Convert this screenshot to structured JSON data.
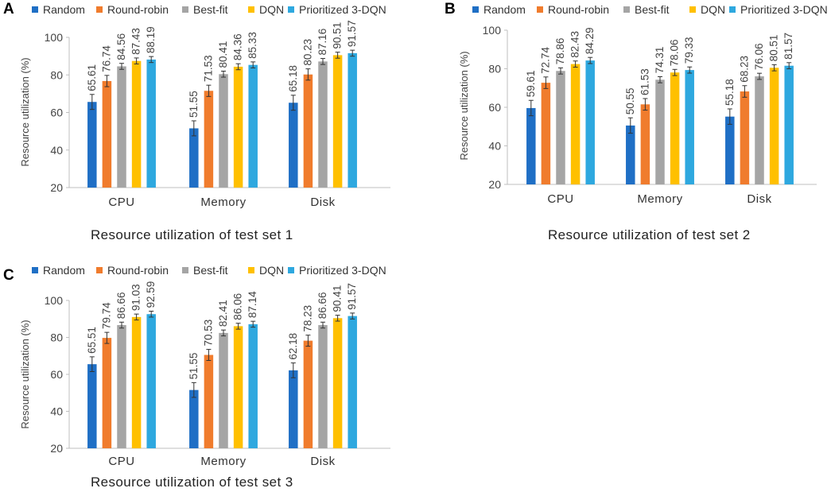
{
  "chart_data": [
    {
      "panel": "A",
      "type": "bar",
      "caption": "Resource utilization of test set 1",
      "ylabel": "Resource utilization (%)",
      "xlabel": "",
      "ylim": [
        20,
        100
      ],
      "yticks": [
        20,
        40,
        60,
        80,
        100
      ],
      "grid": false,
      "legend_position": "top",
      "categories": [
        "CPU",
        "Memory",
        "Disk"
      ],
      "series": [
        {
          "name": "Random",
          "color": "#1f6fc5",
          "values": [
            65.61,
            51.55,
            65.18
          ],
          "labels": [
            "65.61",
            "51.55",
            "65.18"
          ]
        },
        {
          "name": "Round-robin",
          "color": "#f07c2d",
          "values": [
            76.74,
            71.53,
            80.23
          ],
          "labels": [
            "76.74",
            "71.53",
            "80.23"
          ]
        },
        {
          "name": "Best-fit",
          "color": "#a5a5a5",
          "values": [
            84.56,
            80.41,
            87.16
          ],
          "labels": [
            "84.56",
            "80.41",
            "87.16"
          ]
        },
        {
          "name": "DQN",
          "color": "#ffc000",
          "values": [
            87.43,
            84.36,
            90.51
          ],
          "labels": [
            "87.43",
            "84.36",
            "90.51"
          ]
        },
        {
          "name": "Prioritized 3-DQN",
          "color": "#2ea8df",
          "values": [
            88.19,
            85.33,
            91.57
          ],
          "labels": [
            "88.19",
            "85.33",
            "91.57"
          ]
        }
      ]
    },
    {
      "panel": "B",
      "type": "bar",
      "caption": "Resource utilization of test set 2",
      "ylabel": "Resource utilization (%)",
      "xlabel": "",
      "ylim": [
        20,
        100
      ],
      "yticks": [
        20,
        40,
        60,
        80,
        100
      ],
      "grid": false,
      "legend_position": "top",
      "categories": [
        "CPU",
        "Memory",
        "Disk"
      ],
      "series": [
        {
          "name": "Random",
          "color": "#1f6fc5",
          "values": [
            59.61,
            50.55,
            55.18
          ],
          "labels": [
            "59.61",
            "50.55",
            "55.18"
          ]
        },
        {
          "name": "Round-robin",
          "color": "#f07c2d",
          "values": [
            72.74,
            61.53,
            68.23
          ],
          "labels": [
            "72.74",
            "61.53",
            "68.23"
          ]
        },
        {
          "name": "Best-fit",
          "color": "#a5a5a5",
          "values": [
            78.86,
            74.31,
            76.06
          ],
          "labels": [
            "78.86",
            "74.31",
            "76.06"
          ]
        },
        {
          "name": "DQN",
          "color": "#ffc000",
          "values": [
            82.43,
            78.06,
            80.51
          ],
          "labels": [
            "82.43",
            "78.06",
            "80.51"
          ]
        },
        {
          "name": "Prioritized 3-DQN",
          "color": "#2ea8df",
          "values": [
            84.29,
            79.33,
            81.57
          ],
          "labels": [
            "84.29",
            "79.33",
            "81.57"
          ]
        }
      ]
    },
    {
      "panel": "C",
      "type": "bar",
      "caption": "Resource utilization of test set 3",
      "ylabel": "Resource utilization (%)",
      "xlabel": "",
      "ylim": [
        20,
        100
      ],
      "yticks": [
        20,
        40,
        60,
        80,
        100
      ],
      "grid": false,
      "legend_position": "top",
      "categories": [
        "CPU",
        "Memory",
        "Disk"
      ],
      "series": [
        {
          "name": "Random",
          "color": "#1f6fc5",
          "values": [
            65.51,
            51.55,
            62.18
          ],
          "labels": [
            "65.51",
            "51.55",
            "62.18"
          ]
        },
        {
          "name": "Round-robin",
          "color": "#f07c2d",
          "values": [
            79.74,
            70.53,
            78.23
          ],
          "labels": [
            "79.74",
            "70.53",
            "78.23"
          ]
        },
        {
          "name": "Best-fit",
          "color": "#a5a5a5",
          "values": [
            86.66,
            82.41,
            86.66
          ],
          "labels": [
            "86.66",
            "82.41",
            "86.66"
          ]
        },
        {
          "name": "DQN",
          "color": "#ffc000",
          "values": [
            91.03,
            86.06,
            90.41
          ],
          "labels": [
            "91.03",
            "86.06",
            "90.41"
          ]
        },
        {
          "name": "Prioritized 3-DQN",
          "color": "#2ea8df",
          "values": [
            92.59,
            87.14,
            91.57
          ],
          "labels": [
            "92.59",
            "87.14",
            "91.57"
          ]
        }
      ]
    }
  ]
}
